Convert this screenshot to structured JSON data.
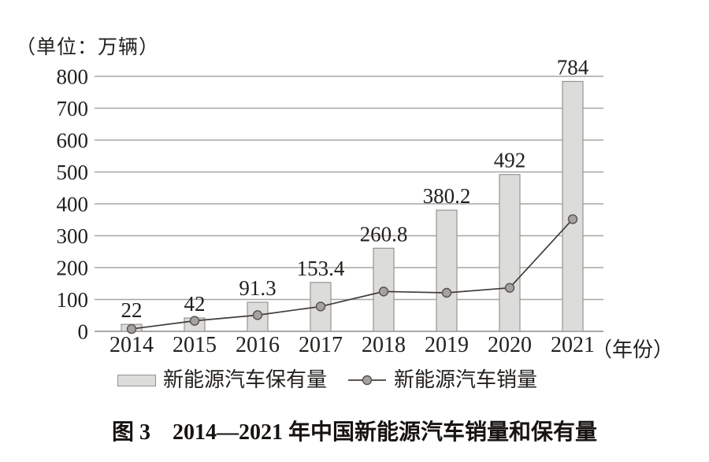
{
  "unit_label": "（单位：万辆）",
  "x_axis_suffix_label": "（年份）",
  "legend": {
    "items": [
      {
        "marker": "bar-swatch",
        "label": "新能源汽车保有量"
      },
      {
        "marker": "line-marker",
        "label": "新能源汽车销量"
      }
    ]
  },
  "caption": "图 3　2014—2021 年中国新能源汽车销量和保有量",
  "colors": {
    "background": "#ffffff",
    "text": "#23201d",
    "gridline": "#a8a5a2",
    "axis_line": "#8f8c89",
    "bar_fill": "#dcdcda",
    "bar_border": "#989490",
    "line": "#413c39",
    "marker_fill": "#a5a29f",
    "marker_border": "#555250"
  },
  "chart_data": {
    "type": "bar",
    "combo": "bar+line",
    "title": "图 3　2014—2021 年中国新能源汽车销量和保有量",
    "categories": [
      "2014",
      "2015",
      "2016",
      "2017",
      "2018",
      "2019",
      "2020",
      "2021"
    ],
    "series": [
      {
        "name": "新能源汽车保有量",
        "type": "bar",
        "values": [
          22,
          42,
          91.3,
          153.4,
          260.8,
          380.2,
          492,
          784
        ],
        "value_labels": [
          "22",
          "42",
          "91.3",
          "153.4",
          "260.8",
          "380.2",
          "492",
          "784"
        ]
      },
      {
        "name": "新能源汽车销量",
        "type": "line",
        "values": [
          7.5,
          33,
          51,
          78,
          125,
          121,
          136.5,
          352
        ],
        "values_estimated": true
      }
    ],
    "unit": "万辆",
    "xlabel": "年份",
    "ylim": [
      0,
      800
    ],
    "ytick_step": 100,
    "grid": "horizontal",
    "legend_position": "bottom"
  }
}
